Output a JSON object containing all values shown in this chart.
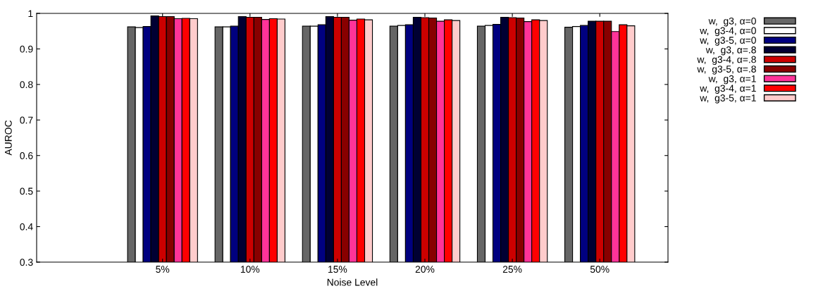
{
  "chart_data": {
    "type": "bar",
    "xlabel": "Noise Level",
    "ylabel": "AUROC",
    "categories": [
      "5%",
      "10%",
      "15%",
      "20%",
      "25%",
      "50%"
    ],
    "ylim": [
      0.3,
      1
    ],
    "yticks": [
      0.3,
      0.4,
      0.5,
      0.6,
      0.7,
      0.8,
      0.9,
      1
    ],
    "legend": "top right",
    "grid": false,
    "series": [
      {
        "name": "w,  g3, α=0",
        "color": "#666666",
        "values": [
          0.962,
          0.962,
          0.964,
          0.964,
          0.964,
          0.961
        ]
      },
      {
        "name": "w,  g3-4, α=0",
        "color": "#ffffff",
        "values": [
          0.96,
          0.962,
          0.964,
          0.966,
          0.966,
          0.963
        ]
      },
      {
        "name": "w,  g3-5, α=0",
        "color": "#000080",
        "values": [
          0.963,
          0.964,
          0.968,
          0.968,
          0.969,
          0.966
        ]
      },
      {
        "name": "w,  g3, α=.8",
        "color": "#000033",
        "values": [
          0.993,
          0.991,
          0.991,
          0.989,
          0.989,
          0.978
        ]
      },
      {
        "name": "w,  g3-4, α=.8",
        "color": "#cc0000",
        "values": [
          0.991,
          0.989,
          0.989,
          0.988,
          0.988,
          0.978
        ]
      },
      {
        "name": "w,  g3-5, α=.8",
        "color": "#880000",
        "values": [
          0.991,
          0.989,
          0.989,
          0.987,
          0.987,
          0.978
        ]
      },
      {
        "name": "w,  g3, α=1",
        "color": "#ff3399",
        "values": [
          0.985,
          0.983,
          0.981,
          0.978,
          0.977,
          0.949
        ]
      },
      {
        "name": "w,  g3-4, α=1",
        "color": "#ff0000",
        "values": [
          0.986,
          0.985,
          0.984,
          0.982,
          0.982,
          0.968
        ]
      },
      {
        "name": "w,  g3-5, α=1",
        "color": "#ffcccc",
        "values": [
          0.985,
          0.984,
          0.982,
          0.98,
          0.98,
          0.965
        ]
      }
    ]
  }
}
